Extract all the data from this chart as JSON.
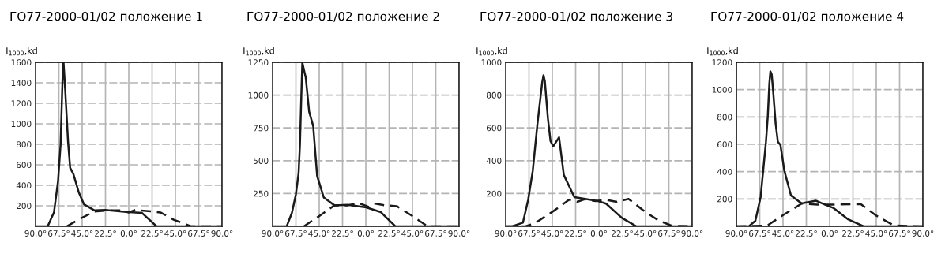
{
  "chart_data": [
    {
      "type": "line",
      "title": "ГО77-2000-01/02 положение 1",
      "ylabel": "I$_{1000}$,kd",
      "grid": true,
      "marker": "none",
      "xlim": [
        -90,
        90
      ],
      "xticks": [
        {
          "value": -90,
          "label": "90.0°"
        },
        {
          "value": -67.5,
          "label": "67.5°"
        },
        {
          "value": -45,
          "label": "45.0°"
        },
        {
          "value": -22.5,
          "label": "22.5°"
        },
        {
          "value": 0,
          "label": "0.0°"
        },
        {
          "value": 22.5,
          "label": "22.5°"
        },
        {
          "value": 45,
          "label": "45.0°"
        },
        {
          "value": 67.5,
          "label": "67.5°"
        },
        {
          "value": 90,
          "label": "90.0°"
        }
      ],
      "ylim": [
        0,
        1600
      ],
      "yticks": [
        200,
        400,
        600,
        800,
        1000,
        1200,
        1400,
        1600
      ],
      "series": [
        {
          "color": "#1a1a1a",
          "line_style": "solid",
          "x": [
            -90,
            -78.3,
            -72.2,
            -68.3,
            -65.8,
            -65,
            -63.7,
            -63,
            -61.7,
            -58.6,
            -56.6,
            -53.5,
            -48.4,
            -43.3,
            -33.1,
            -22.9,
            -2.5,
            12.8,
            26.8,
            90
          ],
          "values": [
            0,
            0,
            136,
            440,
            800,
            1080,
            1515,
            1600,
            1390,
            820,
            570,
            510,
            335,
            215,
            155,
            160,
            140,
            130,
            0,
            0
          ]
        },
        {
          "color": "#1a1a1a",
          "line_style": "dashed",
          "x": [
            -59.9,
            -45.9,
            -33,
            -20.4,
            -6.4,
            0,
            6.4,
            21.7,
            30.6,
            43.3,
            60,
            90
          ],
          "values": [
            0,
            80,
            145,
            155,
            155,
            135,
            160,
            145,
            135,
            65,
            0,
            0
          ]
        }
      ]
    },
    {
      "type": "line",
      "title": "ГО77-2000-01/02 положение 2",
      "ylabel": "I$_{1000}$,kd",
      "grid": true,
      "marker": "none",
      "xlim": [
        -90,
        90
      ],
      "xticks": [
        {
          "value": -90,
          "label": "90.0°"
        },
        {
          "value": -67.5,
          "label": "67.5°"
        },
        {
          "value": -45,
          "label": "45.0°"
        },
        {
          "value": -22.5,
          "label": "22.5°"
        },
        {
          "value": 0,
          "label": "0.0°"
        },
        {
          "value": 22.5,
          "label": "22.5°"
        },
        {
          "value": 45,
          "label": "45.0°"
        },
        {
          "value": 67.5,
          "label": "67.5°"
        },
        {
          "value": 90,
          "label": "90.0°"
        }
      ],
      "ylim": [
        0,
        1250
      ],
      "yticks": [
        250,
        500,
        750,
        1000,
        1250
      ],
      "series": [
        {
          "color": "#1a1a1a",
          "line_style": "solid",
          "x": [
            -90,
            -76.4,
            -71.3,
            -67.5,
            -64.9,
            -63.6,
            -62.3,
            -61.3,
            -59.8,
            -58,
            -54.7,
            -50.8,
            -47,
            -40.6,
            -30.3,
            -17.5,
            0.4,
            14.5,
            28.5,
            90
          ],
          "values": [
            0,
            0,
            104,
            244,
            404,
            624,
            984,
            1248,
            1194,
            1134,
            874,
            764,
            384,
            220,
            160,
            164,
            144,
            108,
            0,
            0
          ]
        },
        {
          "color": "#1a1a1a",
          "line_style": "dashed",
          "x": [
            -59.8,
            -45.7,
            -30.3,
            -17.5,
            -7.3,
            2.9,
            8,
            18.3,
            29.8,
            43.8,
            59.7,
            90
          ],
          "values": [
            0,
            74,
            160,
            160,
            178,
            148,
            174,
            160,
            154,
            84,
            0,
            0
          ]
        }
      ]
    },
    {
      "type": "line",
      "title": "ГО77-2000-01/02 положение 3",
      "ylabel": "I$_{1000}$,kd",
      "grid": true,
      "marker": "none",
      "xlim": [
        -90,
        90
      ],
      "xticks": [
        {
          "value": -90,
          "label": "90.0°"
        },
        {
          "value": -67.5,
          "label": "67.5°"
        },
        {
          "value": -45,
          "label": "45.0°"
        },
        {
          "value": -22.5,
          "label": "22.5°"
        },
        {
          "value": 0,
          "label": "0.0°"
        },
        {
          "value": 22.5,
          "label": "22.5°"
        },
        {
          "value": 45,
          "label": "45.0°"
        },
        {
          "value": 67.5,
          "label": "67.5°"
        },
        {
          "value": 90,
          "label": "90.0°"
        }
      ],
      "ylim": [
        0,
        1000
      ],
      "yticks": [
        200,
        400,
        600,
        800,
        1000
      ],
      "series": [
        {
          "color": "#1a1a1a",
          "line_style": "solid",
          "x": [
            -90,
            -83.6,
            -73.4,
            -68.3,
            -63.9,
            -59.4,
            -54.8,
            -53.5,
            -52.2,
            -49.2,
            -46.7,
            -44.1,
            -38.5,
            -33.9,
            -23.7,
            -11,
            -0.8,
            6.9,
            22.2,
            36.2,
            90
          ],
          "values": [
            0,
            0,
            22,
            162,
            337,
            622,
            876,
            921,
            884,
            654,
            519,
            487,
            543,
            313,
            178,
            165,
            154,
            138,
            51,
            0,
            0
          ]
        },
        {
          "color": "#1a1a1a",
          "line_style": "dashed",
          "x": [
            -90,
            -70.9,
            -61.9,
            -44.1,
            -28.8,
            -21.2,
            -13.5,
            -3.3,
            6.9,
            17.1,
            28.6,
            45.1,
            57.9,
            70.6,
            90
          ],
          "values": [
            0,
            0,
            19,
            92,
            162,
            149,
            165,
            154,
            162,
            149,
            167,
            86,
            35,
            3,
            0
          ]
        }
      ]
    },
    {
      "type": "line",
      "title": "ГО77-2000-01/02 положение 4",
      "ylabel": "I$_{1000}$,kd",
      "grid": true,
      "marker": "none",
      "xlim": [
        -90,
        90
      ],
      "xticks": [
        {
          "value": -90,
          "label": "90.0°"
        },
        {
          "value": -67.5,
          "label": "67.5°"
        },
        {
          "value": -45,
          "label": "45.0°"
        },
        {
          "value": -22.5,
          "label": "22.5°"
        },
        {
          "value": 0,
          "label": "0.0°"
        },
        {
          "value": 22.5,
          "label": "22.5°"
        },
        {
          "value": 45,
          "label": "45.0°"
        },
        {
          "value": 67.5,
          "label": "67.5°"
        },
        {
          "value": 90,
          "label": "90.0°"
        }
      ],
      "ylim": [
        0,
        1200
      ],
      "yticks": [
        200,
        400,
        600,
        800,
        1000,
        1200
      ],
      "series": [
        {
          "color": "#1a1a1a",
          "line_style": "solid",
          "x": [
            -90,
            -78,
            -71.7,
            -66.6,
            -61.5,
            -59.7,
            -58.2,
            -57.2,
            -55.9,
            -54.6,
            -52.1,
            -50,
            -47.5,
            -43.7,
            -37.3,
            -27.1,
            -13.1,
            -4.2,
            3.4,
            17.4,
            32.7,
            90
          ],
          "values": [
            0,
            0,
            40,
            215,
            615,
            806,
            1044,
            1133,
            1110,
            996,
            749,
            619,
            596,
            406,
            225,
            168,
            187,
            158,
            135,
            53,
            0,
            0
          ]
        },
        {
          "color": "#1a1a1a",
          "line_style": "dashed",
          "x": [
            -90,
            -60.2,
            -44.9,
            -27.1,
            -11.8,
            0.9,
            21.3,
            30.2,
            44.2,
            62,
            69.6,
            90
          ],
          "values": [
            0,
            6,
            82,
            166,
            158,
            158,
            162,
            162,
            82,
            6,
            4,
            0
          ]
        }
      ]
    }
  ]
}
